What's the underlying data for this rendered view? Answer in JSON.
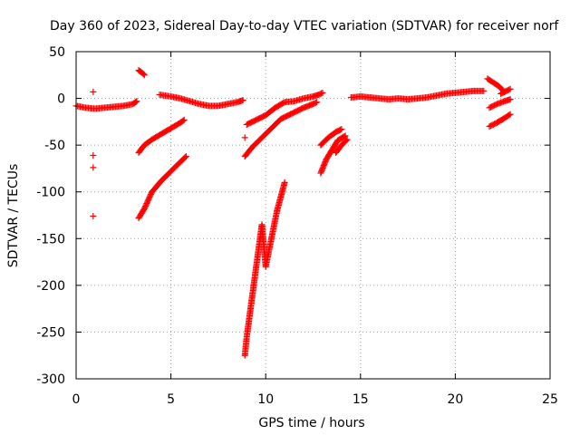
{
  "chart_data": {
    "type": "scatter",
    "title": "Day 360 of 2023, Sidereal Day-to-day VTEC variation (SDTVAR) for receiver norf",
    "xlabel": "GPS time / hours",
    "ylabel": "SDTVAR / TECUs",
    "xlim": [
      0,
      25
    ],
    "ylim": [
      -300,
      50
    ],
    "xticks": [
      0,
      5,
      10,
      15,
      20,
      25
    ],
    "yticks": [
      -300,
      -250,
      -200,
      -150,
      -100,
      -50,
      0,
      50
    ],
    "grid": true,
    "marker": "plus",
    "color": "#ff0000",
    "series": [
      {
        "points": [
          [
            0,
            -8
          ],
          [
            0.5,
            -10
          ],
          [
            1.0,
            -11
          ],
          [
            1.5,
            -10
          ],
          [
            2.0,
            -9
          ],
          [
            2.5,
            -8
          ],
          [
            3.0,
            -6
          ],
          [
            3.2,
            -3
          ]
        ]
      },
      {
        "points": [
          [
            0.9,
            7
          ],
          [
            0.9,
            -61
          ],
          [
            0.9,
            -74
          ],
          [
            0.9,
            -126
          ]
        ]
      },
      {
        "points": [
          [
            3.3,
            30
          ],
          [
            3.5,
            27
          ],
          [
            3.6,
            25
          ]
        ]
      },
      {
        "points": [
          [
            3.3,
            -58
          ],
          [
            3.6,
            -50
          ],
          [
            4.0,
            -44
          ],
          [
            4.5,
            -38
          ],
          [
            5.0,
            -32
          ],
          [
            5.5,
            -26
          ],
          [
            5.7,
            -23
          ]
        ]
      },
      {
        "points": [
          [
            3.3,
            -128
          ],
          [
            3.6,
            -118
          ],
          [
            4.0,
            -100
          ],
          [
            4.5,
            -88
          ],
          [
            5.0,
            -78
          ],
          [
            5.5,
            -68
          ],
          [
            5.8,
            -62
          ]
        ]
      },
      {
        "points": [
          [
            4.4,
            4
          ],
          [
            5.0,
            2
          ],
          [
            5.5,
            0
          ],
          [
            6.0,
            -3
          ],
          [
            6.5,
            -6
          ],
          [
            7.0,
            -8
          ],
          [
            7.5,
            -8
          ],
          [
            8.0,
            -6
          ],
          [
            8.5,
            -4
          ],
          [
            8.8,
            -2
          ]
        ]
      },
      {
        "points": [
          [
            8.9,
            -42
          ]
        ]
      },
      {
        "points": [
          [
            8.9,
            -62
          ],
          [
            9.3,
            -52
          ],
          [
            9.8,
            -42
          ],
          [
            10.3,
            -32
          ],
          [
            10.8,
            -22
          ],
          [
            11.5,
            -15
          ],
          [
            12.0,
            -10
          ],
          [
            12.5,
            -6
          ],
          [
            12.7,
            -4
          ]
        ]
      },
      {
        "points": [
          [
            9.0,
            -28
          ],
          [
            9.5,
            -23
          ],
          [
            10.0,
            -18
          ],
          [
            10.5,
            -10
          ],
          [
            11.0,
            -4
          ],
          [
            11.5,
            -3
          ],
          [
            12.0,
            0
          ],
          [
            12.5,
            2
          ],
          [
            12.8,
            4
          ],
          [
            13.0,
            6
          ]
        ]
      },
      {
        "points": [
          [
            8.9,
            -275
          ],
          [
            9.0,
            -255
          ],
          [
            9.2,
            -225
          ],
          [
            9.4,
            -195
          ],
          [
            9.6,
            -165
          ],
          [
            9.8,
            -135
          ],
          [
            10.0,
            -180
          ],
          [
            10.3,
            -150
          ],
          [
            10.6,
            -120
          ],
          [
            11.0,
            -90
          ]
        ]
      },
      {
        "points": [
          [
            12.9,
            -80
          ],
          [
            13.2,
            -65
          ],
          [
            13.5,
            -55
          ],
          [
            13.8,
            -45
          ],
          [
            14.2,
            -40
          ]
        ]
      },
      {
        "points": [
          [
            12.9,
            -50
          ],
          [
            13.3,
            -42
          ],
          [
            13.7,
            -36
          ],
          [
            14.0,
            -33
          ]
        ]
      },
      {
        "points": [
          [
            13.7,
            -58
          ],
          [
            14.0,
            -50
          ],
          [
            14.3,
            -44
          ]
        ]
      },
      {
        "points": [
          [
            14.5,
            1
          ],
          [
            15.0,
            2
          ],
          [
            15.5,
            1
          ],
          [
            16.0,
            0
          ],
          [
            16.5,
            -1
          ],
          [
            17.0,
            0
          ],
          [
            17.5,
            -1
          ],
          [
            18.0,
            0
          ],
          [
            18.5,
            1
          ],
          [
            19.0,
            3
          ],
          [
            19.5,
            5
          ],
          [
            20.0,
            6
          ],
          [
            20.5,
            7
          ],
          [
            21.0,
            8
          ],
          [
            21.5,
            8
          ]
        ]
      },
      {
        "points": [
          [
            21.7,
            21
          ],
          [
            22.0,
            17
          ],
          [
            22.3,
            13
          ],
          [
            22.5,
            9
          ]
        ]
      },
      {
        "points": [
          [
            21.8,
            -10
          ],
          [
            22.2,
            -6
          ],
          [
            22.6,
            -3
          ],
          [
            22.9,
            -1
          ]
        ]
      },
      {
        "points": [
          [
            21.8,
            -30
          ],
          [
            22.2,
            -26
          ],
          [
            22.6,
            -21
          ],
          [
            22.9,
            -17
          ]
        ]
      },
      {
        "points": [
          [
            22.4,
            5
          ],
          [
            22.7,
            8
          ],
          [
            22.9,
            10
          ]
        ]
      }
    ]
  }
}
